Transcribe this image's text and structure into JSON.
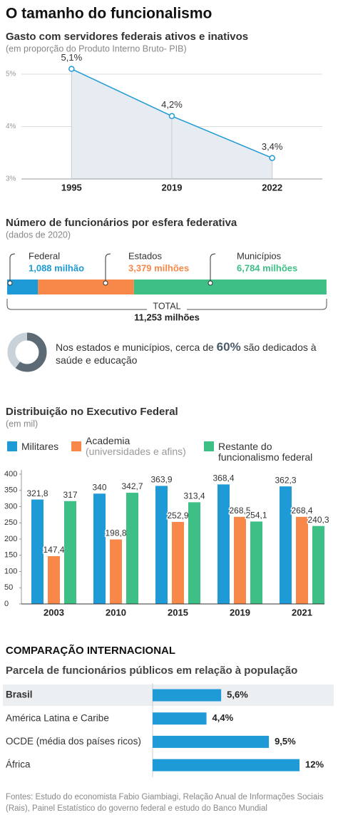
{
  "title": "O tamanho do funcionalismo",
  "chart_data": [
    {
      "type": "line",
      "title": "Gasto com servidores federais ativos e inativos",
      "subtitle": "(em proporção do Produto Interno Bruto- PIB)",
      "categories": [
        "1995",
        "2019",
        "2022"
      ],
      "values": [
        5.1,
        4.2,
        3.4
      ],
      "value_labels": [
        "5,1%",
        "4,2%",
        "3,4%"
      ],
      "color": "#1e9ad6",
      "area_color": "#e6ecf1",
      "ylim": [
        3,
        5
      ],
      "yticks": [
        {
          "value": 3,
          "label": "3%"
        },
        {
          "value": 4,
          "label": "4%"
        },
        {
          "value": 5,
          "label": "5%"
        }
      ],
      "grid": true
    },
    {
      "type": "stacked_hbar",
      "title": "Número de funcionários por esfera federativa",
      "subtitle": "(dados de 2020)",
      "series": [
        {
          "name": "Federal",
          "color": "#1e9ad6",
          "values": [
            1.088
          ],
          "value_labels": [
            "1,088 milhão"
          ]
        },
        {
          "name": "Estados",
          "color": "#f7884a",
          "values": [
            3.379
          ],
          "value_labels": [
            "3,379 milhões"
          ]
        },
        {
          "name": "Municípios",
          "color": "#3dbf85",
          "values": [
            6.784
          ],
          "value_labels": [
            "6,784 milhões"
          ]
        }
      ],
      "total_label": "TOTAL",
      "total": 11.253,
      "total_value_label": "11,253 milhões"
    },
    {
      "type": "donut",
      "text_before": "Nos estados e municípios, cerca de",
      "values": [
        60
      ],
      "value_labels": [
        "60%"
      ],
      "text_after": "são dedicados à saúde e educação",
      "color": "#5b6a74",
      "track_color": "#c9d2d9"
    },
    {
      "type": "grouped_bar",
      "title": "Distribuição no Executivo Federal",
      "subtitle": "(em mil)",
      "categories": [
        "2003",
        "2010",
        "2015",
        "2019",
        "2021"
      ],
      "series": [
        {
          "name": "Militares",
          "color": "#1e9ad6",
          "values": [
            321.8,
            340,
            363.9,
            368.4,
            362.3
          ],
          "value_labels": [
            "321,8",
            "340",
            "363,9",
            "368,4",
            "362,3"
          ]
        },
        {
          "name": "Academia",
          "note": "(universidades e afins)",
          "color": "#f7884a",
          "values": [
            147.4,
            198.8,
            252.9,
            268.5,
            268.4
          ],
          "value_labels": [
            "147,4",
            "198,8",
            "252,9",
            "268,5",
            "268,4"
          ]
        },
        {
          "name": "Restante do funcionalismo federal",
          "color": "#3dbf85",
          "values": [
            317,
            342.7,
            313.4,
            254.1,
            240.3
          ],
          "value_labels": [
            "317",
            "342,7",
            "313,4",
            "254,1",
            "240,3"
          ]
        }
      ],
      "ylim": [
        0,
        400
      ],
      "yticks": [
        0,
        50,
        100,
        150,
        200,
        250,
        300,
        350,
        400
      ],
      "grid": false
    },
    {
      "type": "hbar",
      "section": "COMPARAÇÃO INTERNACIONAL",
      "title": "Parcela de funcionários públicos em relação à população",
      "categories": [
        "Brasil",
        "América Latina e Caribe",
        "OCDE (média dos países ricos)",
        "África"
      ],
      "values": [
        5.6,
        4.4,
        9.5,
        12
      ],
      "value_labels": [
        "5,6%",
        "4,4%",
        "9,5%",
        "12%"
      ],
      "color": "#1e9ad6",
      "highlight": 0
    }
  ],
  "source": "Fontes: Estudo do economista Fabio Giambiagi, Relação Anual de Informações Sociais (Rais), Painel Estatístico do governo federal e estudo do Banco Mundial"
}
